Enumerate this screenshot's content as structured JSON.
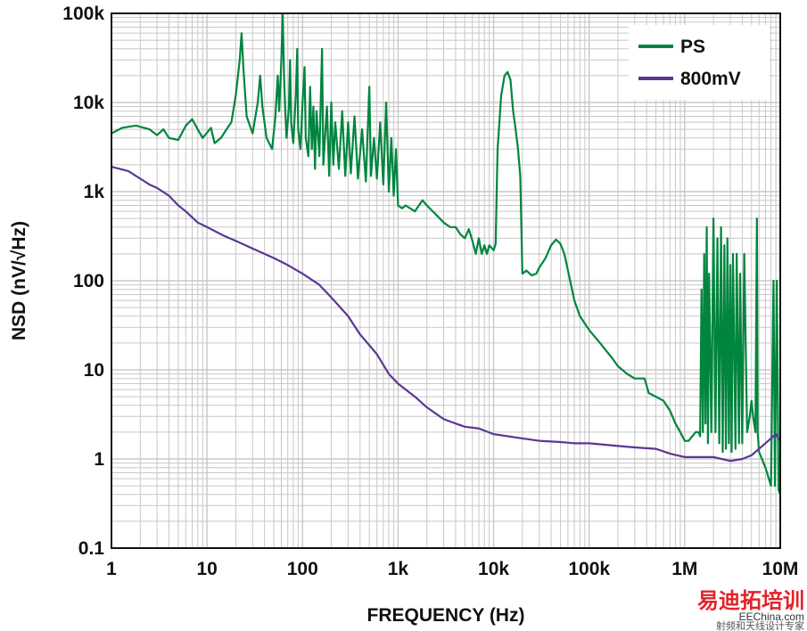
{
  "chart_data": {
    "type": "line",
    "xlabel": "FREQUENCY (Hz)",
    "ylabel": "NSD (nV/√Hz)",
    "xscale": "log",
    "yscale": "log",
    "xlim": [
      1,
      10000000
    ],
    "ylim": [
      0.1,
      100000
    ],
    "grid": true,
    "legend_position": "top-right",
    "x_tick_labels": [
      "1",
      "10",
      "100",
      "1k",
      "10k",
      "100k",
      "1M",
      "10M"
    ],
    "y_tick_labels": [
      "0.1",
      "1",
      "10",
      "100",
      "1k",
      "10k",
      "100k"
    ],
    "series": [
      {
        "name": "PS",
        "color": "#00853e",
        "points": [
          [
            1,
            4500
          ],
          [
            1.3,
            5200
          ],
          [
            1.8,
            5500
          ],
          [
            2.5,
            5000
          ],
          [
            3,
            4300
          ],
          [
            3.5,
            5000
          ],
          [
            4,
            4000
          ],
          [
            5,
            3800
          ],
          [
            6,
            5500
          ],
          [
            7,
            6500
          ],
          [
            8,
            5000
          ],
          [
            9,
            4000
          ],
          [
            11,
            5200
          ],
          [
            12,
            3500
          ],
          [
            14,
            4000
          ],
          [
            16,
            5000
          ],
          [
            18,
            6000
          ],
          [
            20,
            12000
          ],
          [
            22,
            30000
          ],
          [
            23,
            60000
          ],
          [
            24,
            25000
          ],
          [
            26,
            7000
          ],
          [
            30,
            4500
          ],
          [
            34,
            10000
          ],
          [
            36,
            20000
          ],
          [
            38,
            9000
          ],
          [
            42,
            4000
          ],
          [
            48,
            3000
          ],
          [
            52,
            7000
          ],
          [
            55,
            20000
          ],
          [
            57,
            8000
          ],
          [
            60,
            30000
          ],
          [
            62,
            100000
          ],
          [
            64,
            20000
          ],
          [
            66,
            8000
          ],
          [
            68,
            4000
          ],
          [
            72,
            9000
          ],
          [
            74,
            30000
          ],
          [
            76,
            6000
          ],
          [
            80,
            3500
          ],
          [
            85,
            12000
          ],
          [
            88,
            40000
          ],
          [
            90,
            5000
          ],
          [
            95,
            3000
          ],
          [
            100,
            10000
          ],
          [
            105,
            25000
          ],
          [
            108,
            4000
          ],
          [
            115,
            2500
          ],
          [
            120,
            15000
          ],
          [
            125,
            3000
          ],
          [
            130,
            9000
          ],
          [
            135,
            1800
          ],
          [
            140,
            8000
          ],
          [
            150,
            2500
          ],
          [
            160,
            40000
          ],
          [
            165,
            2000
          ],
          [
            180,
            9000
          ],
          [
            190,
            1500
          ],
          [
            200,
            10000
          ],
          [
            210,
            2000
          ],
          [
            220,
            6000
          ],
          [
            240,
            1800
          ],
          [
            260,
            8000
          ],
          [
            280,
            1500
          ],
          [
            300,
            6000
          ],
          [
            320,
            1600
          ],
          [
            350,
            7000
          ],
          [
            380,
            1400
          ],
          [
            420,
            5000
          ],
          [
            460,
            1300
          ],
          [
            500,
            15000
          ],
          [
            520,
            1500
          ],
          [
            560,
            4000
          ],
          [
            600,
            1400
          ],
          [
            650,
            6000
          ],
          [
            700,
            1200
          ],
          [
            750,
            10000
          ],
          [
            800,
            1000
          ],
          [
            850,
            4000
          ],
          [
            900,
            900
          ],
          [
            950,
            3000
          ],
          [
            1000,
            700
          ],
          [
            1100,
            650
          ],
          [
            1200,
            700
          ],
          [
            1500,
            600
          ],
          [
            1800,
            800
          ],
          [
            2000,
            700
          ],
          [
            2500,
            550
          ],
          [
            3000,
            450
          ],
          [
            3500,
            400
          ],
          [
            4000,
            400
          ],
          [
            4500,
            330
          ],
          [
            5000,
            300
          ],
          [
            5500,
            380
          ],
          [
            6000,
            280
          ],
          [
            6500,
            200
          ],
          [
            7000,
            300
          ],
          [
            7500,
            200
          ],
          [
            8000,
            250
          ],
          [
            8500,
            200
          ],
          [
            9000,
            250
          ],
          [
            10000,
            220
          ],
          [
            10500,
            260
          ],
          [
            11000,
            3000
          ],
          [
            12000,
            12000
          ],
          [
            13000,
            20000
          ],
          [
            14000,
            22000
          ],
          [
            15000,
            18000
          ],
          [
            16000,
            8000
          ],
          [
            17000,
            5000
          ],
          [
            18000,
            3000
          ],
          [
            19000,
            1500
          ],
          [
            20000,
            120
          ],
          [
            22000,
            130
          ],
          [
            25000,
            115
          ],
          [
            28000,
            120
          ],
          [
            30000,
            140
          ],
          [
            35000,
            180
          ],
          [
            40000,
            250
          ],
          [
            45000,
            290
          ],
          [
            50000,
            260
          ],
          [
            55000,
            200
          ],
          [
            60000,
            130
          ],
          [
            70000,
            60
          ],
          [
            80000,
            40
          ],
          [
            100000,
            28
          ],
          [
            130000,
            20
          ],
          [
            170000,
            14
          ],
          [
            200000,
            11
          ],
          [
            250000,
            9
          ],
          [
            300000,
            8
          ],
          [
            380000,
            8
          ],
          [
            420000,
            5.5
          ],
          [
            500000,
            5
          ],
          [
            600000,
            4.5
          ],
          [
            700000,
            3.5
          ],
          [
            800000,
            2.5
          ],
          [
            900000,
            2
          ],
          [
            1000000,
            1.6
          ],
          [
            1100000,
            1.6
          ],
          [
            1300000,
            2
          ],
          [
            1400000,
            2
          ],
          [
            1450000,
            1.8
          ],
          [
            1500000,
            80
          ],
          [
            1550000,
            2
          ],
          [
            1600000,
            200
          ],
          [
            1650000,
            2.5
          ],
          [
            1700000,
            400
          ],
          [
            1750000,
            1.5
          ],
          [
            1800000,
            120
          ],
          [
            1900000,
            2
          ],
          [
            2000000,
            500
          ],
          [
            2100000,
            2
          ],
          [
            2200000,
            300
          ],
          [
            2300000,
            1.5
          ],
          [
            2400000,
            400
          ],
          [
            2500000,
            1.2
          ],
          [
            2600000,
            250
          ],
          [
            2700000,
            1.3
          ],
          [
            2800000,
            300
          ],
          [
            2900000,
            1.5
          ],
          [
            3000000,
            150
          ],
          [
            3100000,
            1.2
          ],
          [
            3200000,
            200
          ],
          [
            3400000,
            1.3
          ],
          [
            3500000,
            200
          ],
          [
            3700000,
            1.5
          ],
          [
            3800000,
            120
          ],
          [
            4000000,
            1.5
          ],
          [
            4200000,
            200
          ],
          [
            4500000,
            2
          ],
          [
            4800000,
            3
          ],
          [
            5000000,
            4.5
          ],
          [
            5200000,
            3
          ],
          [
            5500000,
            2
          ],
          [
            5700000,
            500
          ],
          [
            5800000,
            2
          ],
          [
            6000000,
            1.2
          ],
          [
            7000000,
            0.8
          ],
          [
            8000000,
            0.5
          ],
          [
            8500000,
            100
          ],
          [
            8800000,
            0.5
          ],
          [
            9200000,
            100
          ],
          [
            9600000,
            0.45
          ],
          [
            10000000,
            0.4
          ]
        ]
      },
      {
        "name": "800mV",
        "color": "#5b3794",
        "points": [
          [
            1,
            1900
          ],
          [
            1.5,
            1700
          ],
          [
            2,
            1400
          ],
          [
            2.5,
            1200
          ],
          [
            3,
            1100
          ],
          [
            4,
            900
          ],
          [
            5,
            700
          ],
          [
            6,
            600
          ],
          [
            8,
            450
          ],
          [
            10,
            400
          ],
          [
            15,
            320
          ],
          [
            20,
            280
          ],
          [
            30,
            230
          ],
          [
            50,
            180
          ],
          [
            70,
            150
          ],
          [
            100,
            120
          ],
          [
            150,
            90
          ],
          [
            200,
            65
          ],
          [
            300,
            40
          ],
          [
            400,
            25
          ],
          [
            600,
            15
          ],
          [
            800,
            9
          ],
          [
            1000,
            7
          ],
          [
            1500,
            5
          ],
          [
            2000,
            3.8
          ],
          [
            3000,
            2.8
          ],
          [
            4000,
            2.5
          ],
          [
            5000,
            2.3
          ],
          [
            7000,
            2.2
          ],
          [
            10000,
            1.9
          ],
          [
            20000,
            1.7
          ],
          [
            30000,
            1.6
          ],
          [
            50000,
            1.55
          ],
          [
            70000,
            1.5
          ],
          [
            100000,
            1.5
          ],
          [
            200000,
            1.4
          ],
          [
            300000,
            1.35
          ],
          [
            500000,
            1.3
          ],
          [
            700000,
            1.15
          ],
          [
            1000000,
            1.05
          ],
          [
            2000000,
            1.05
          ],
          [
            3000000,
            0.95
          ],
          [
            4000000,
            1.0
          ],
          [
            5000000,
            1.1
          ],
          [
            6000000,
            1.3
          ],
          [
            8000000,
            1.7
          ],
          [
            9000000,
            1.9
          ],
          [
            10000000,
            1.6
          ]
        ]
      }
    ]
  },
  "watermark": {
    "title": "易迪拓培训",
    "subtitle": "射频和天线设计专家",
    "site": "EEChina.com"
  }
}
